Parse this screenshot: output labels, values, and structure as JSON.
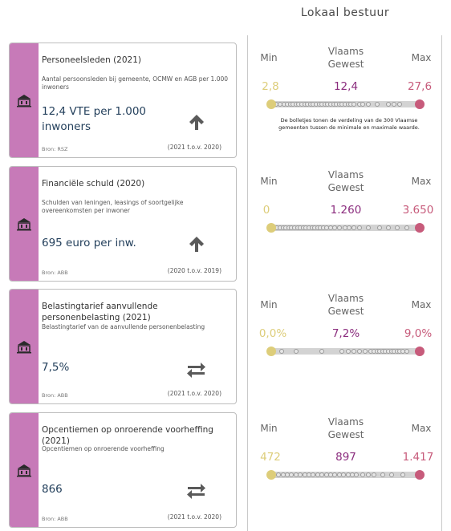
{
  "header": {
    "title": "Lokaal bestuur"
  },
  "colors": {
    "strip": "#c77ab8",
    "min": "#ddcd7a",
    "gewest": "#8b2d7e",
    "max": "#c75b7b",
    "value": "#24405c"
  },
  "cards": [
    {
      "title": "Personeelsleden (2021)",
      "description": "Aantal persoonsleden bij gemeente, OCMW en AGB per 1.000 inwoners",
      "value": "12,4 VTE per 1.000 inwoners",
      "trend_icon": "arrow-up-icon",
      "source": "Bron: RSZ",
      "period": "(2021 t.o.v. 2020)"
    },
    {
      "title": "Financiële schuld (2020)",
      "description": "Schulden van leningen, leasings of soortgelijke overeenkomsten per inwoner",
      "value": "695 euro per inw.",
      "trend_icon": "arrow-up-icon",
      "source": "Bron: ABB",
      "period": "(2020 t.o.v. 2019)"
    },
    {
      "title": "Belastingtarief aanvullende personenbelasting (2021)",
      "description": "Belastingtarief van de aanvullende personenbelasting",
      "value": "7,5%",
      "trend_icon": "arrows-exchange-icon",
      "source": "Bron: ABB",
      "period": "(2021 t.o.v. 2020)"
    },
    {
      "title": "Opcentiemen op onroerende voorheffing (2021)",
      "description": "Opcentiemen op onroerende voorheffing",
      "value": "866",
      "trend_icon": "arrows-exchange-icon",
      "source": "Bron: ABB",
      "period": "(2021 t.o.v. 2020)"
    }
  ],
  "stats": [
    {
      "min_label": "Min",
      "gewest_label": "Vlaams Gewest",
      "max_label": "Max",
      "min": "2,8",
      "gewest": "12,4",
      "max": "27,6",
      "note": "De bolletjes tonen de verdeling van de 300 Vlaamse gemeenten tussen de minimale en maximale waarde.",
      "dots": [
        0.02,
        0.05,
        0.08,
        0.1,
        0.12,
        0.14,
        0.16,
        0.18,
        0.2,
        0.22,
        0.24,
        0.26,
        0.28,
        0.3,
        0.32,
        0.34,
        0.36,
        0.38,
        0.4,
        0.42,
        0.44,
        0.46,
        0.48,
        0.5,
        0.52,
        0.54,
        0.56,
        0.6,
        0.62,
        0.66,
        0.72,
        0.8,
        0.84,
        0.88
      ]
    },
    {
      "min_label": "Min",
      "gewest_label": "Vlaams Gewest",
      "max_label": "Max",
      "min": "0",
      "gewest": "1.260",
      "max": "3.650",
      "note": "",
      "dots": [
        0.01,
        0.03,
        0.05,
        0.07,
        0.09,
        0.11,
        0.13,
        0.15,
        0.17,
        0.19,
        0.21,
        0.23,
        0.25,
        0.27,
        0.29,
        0.31,
        0.33,
        0.35,
        0.37,
        0.4,
        0.43,
        0.46,
        0.5,
        0.53,
        0.56,
        0.6,
        0.66,
        0.74,
        0.8,
        0.86,
        0.93
      ]
    },
    {
      "min_label": "Min",
      "gewest_label": "Vlaams Gewest",
      "max_label": "Max",
      "min": "0,0%",
      "gewest": "7,2%",
      "max": "9,0%",
      "note": "",
      "dots": [
        0.06,
        0.16,
        0.34,
        0.48,
        0.52,
        0.56,
        0.6,
        0.64,
        0.68,
        0.7,
        0.72,
        0.74,
        0.76,
        0.78,
        0.8,
        0.82,
        0.84,
        0.86,
        0.88,
        0.9,
        0.93
      ]
    },
    {
      "min_label": "Min",
      "gewest_label": "Vlaams Gewest",
      "max_label": "Max",
      "min": "472",
      "gewest": "897",
      "max": "1.417",
      "note": "",
      "dots": [
        0.04,
        0.07,
        0.1,
        0.13,
        0.16,
        0.19,
        0.22,
        0.25,
        0.28,
        0.31,
        0.34,
        0.37,
        0.4,
        0.43,
        0.46,
        0.49,
        0.52,
        0.55,
        0.58,
        0.62,
        0.66,
        0.7,
        0.76,
        0.82,
        0.9
      ]
    }
  ]
}
